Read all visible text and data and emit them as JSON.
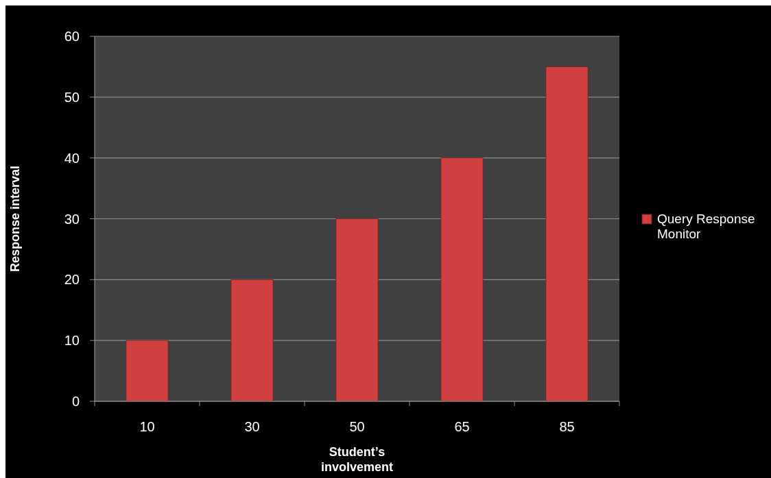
{
  "chart_data": {
    "type": "bar",
    "xlabel": "Student’s involvement",
    "ylabel": "Response interval",
    "categories": [
      "10",
      "30",
      "50",
      "65",
      "85"
    ],
    "series": [
      {
        "name": "Query Response Monitor",
        "color": "#d04040",
        "values": [
          10,
          20,
          30,
          40,
          55
        ]
      }
    ],
    "ylim": [
      0,
      60
    ],
    "yticks": [
      0,
      10,
      20,
      30,
      40,
      50,
      60
    ],
    "grid": "y",
    "legend": "right"
  }
}
